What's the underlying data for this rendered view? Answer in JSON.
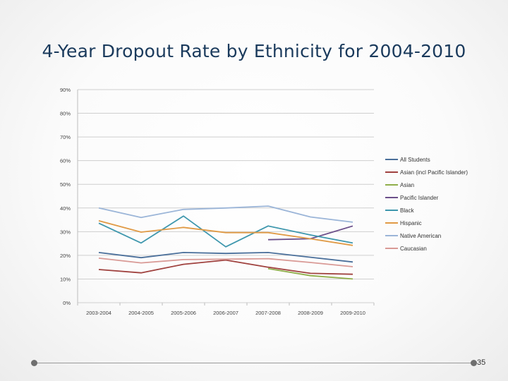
{
  "slide": {
    "title": "4-Year Dropout Rate by Ethnicity for 2004-2010",
    "page_number": "35"
  },
  "chart_data": {
    "type": "line",
    "title": "",
    "xlabel": "",
    "ylabel": "",
    "ylim": [
      0,
      90
    ],
    "yticks": [
      0,
      10,
      20,
      30,
      40,
      50,
      60,
      70,
      80,
      90
    ],
    "ytick_labels": [
      "0%",
      "10%",
      "20%",
      "30%",
      "40%",
      "50%",
      "60%",
      "70%",
      "80%",
      "90%"
    ],
    "categories": [
      "2003-2004",
      "2004-2005",
      "2005-2006",
      "2006-2007",
      "2007-2008",
      "2008-2009",
      "2009-2010"
    ],
    "grid": true,
    "legend_position": "right",
    "series": [
      {
        "name": "All Students",
        "color": "#4a6f9a",
        "values": [
          21.2,
          19.0,
          21.2,
          20.8,
          21.2,
          19.2,
          17.2
        ]
      },
      {
        "name": "Asian (incl Pacific Islander)",
        "color": "#a0423f",
        "values": [
          14.0,
          12.6,
          16.2,
          18.0,
          15.0,
          12.4,
          12.0
        ]
      },
      {
        "name": "Asian",
        "color": "#8fae4a",
        "values": [
          null,
          null,
          null,
          null,
          14.4,
          11.4,
          10.0
        ]
      },
      {
        "name": "Pacific Islander",
        "color": "#6b4f8a",
        "values": [
          null,
          null,
          null,
          null,
          26.6,
          27.0,
          32.4
        ]
      },
      {
        "name": "Black",
        "color": "#3e97ad",
        "values": [
          33.6,
          25.2,
          36.6,
          23.6,
          32.4,
          28.6,
          25.2
        ]
      },
      {
        "name": "Hispanic",
        "color": "#e09a45",
        "values": [
          34.6,
          29.8,
          31.8,
          29.6,
          29.6,
          27.0,
          24.2
        ]
      },
      {
        "name": "Native American",
        "color": "#9bb5d8",
        "values": [
          40.0,
          36.0,
          39.4,
          40.0,
          40.8,
          36.2,
          34.0
        ]
      },
      {
        "name": "Caucasian",
        "color": "#d99a96",
        "values": [
          18.8,
          16.8,
          18.2,
          18.4,
          18.6,
          17.0,
          15.2
        ]
      }
    ]
  }
}
